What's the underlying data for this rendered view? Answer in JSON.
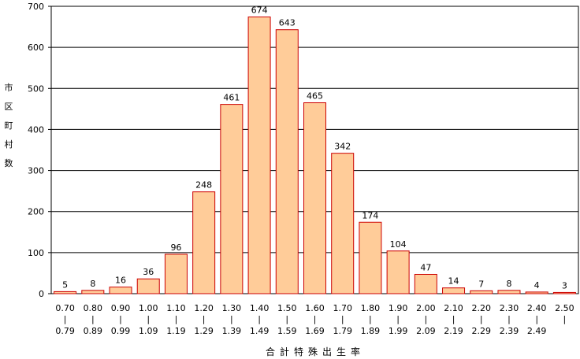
{
  "chart_data": {
    "type": "bar",
    "categories": [
      [
        "0.70",
        "|",
        "0.79"
      ],
      [
        "0.80",
        "|",
        "0.89"
      ],
      [
        "0.90",
        "|",
        "0.99"
      ],
      [
        "1.00",
        "|",
        "1.09"
      ],
      [
        "1.10",
        "|",
        "1.19"
      ],
      [
        "1.20",
        "|",
        "1.29"
      ],
      [
        "1.30",
        "|",
        "1.39"
      ],
      [
        "1.40",
        "|",
        "1.49"
      ],
      [
        "1.50",
        "|",
        "1.59"
      ],
      [
        "1.60",
        "|",
        "1.69"
      ],
      [
        "1.70",
        "|",
        "1.79"
      ],
      [
        "1.80",
        "|",
        "1.89"
      ],
      [
        "1.90",
        "|",
        "1.99"
      ],
      [
        "2.00",
        "|",
        "2.09"
      ],
      [
        "2.10",
        "|",
        "2.19"
      ],
      [
        "2.20",
        "|",
        "2.29"
      ],
      [
        "2.30",
        "|",
        "2.39"
      ],
      [
        "2.40",
        "|",
        "2.49"
      ],
      [
        "2.50",
        "|",
        ""
      ]
    ],
    "values": [
      5,
      8,
      16,
      36,
      96,
      248,
      461,
      674,
      643,
      465,
      342,
      174,
      104,
      47,
      14,
      7,
      8,
      4,
      3
    ],
    "ylabel": "市区町村数",
    "xlabel": "合計特殊出生率",
    "ylim": [
      0,
      700
    ],
    "yticks": [
      0,
      100,
      200,
      300,
      400,
      500,
      600,
      700
    ],
    "grid": true,
    "colors": {
      "bar_fill": "#FFCC99",
      "bar_stroke": "#CC0000",
      "grid": "#000000"
    }
  }
}
